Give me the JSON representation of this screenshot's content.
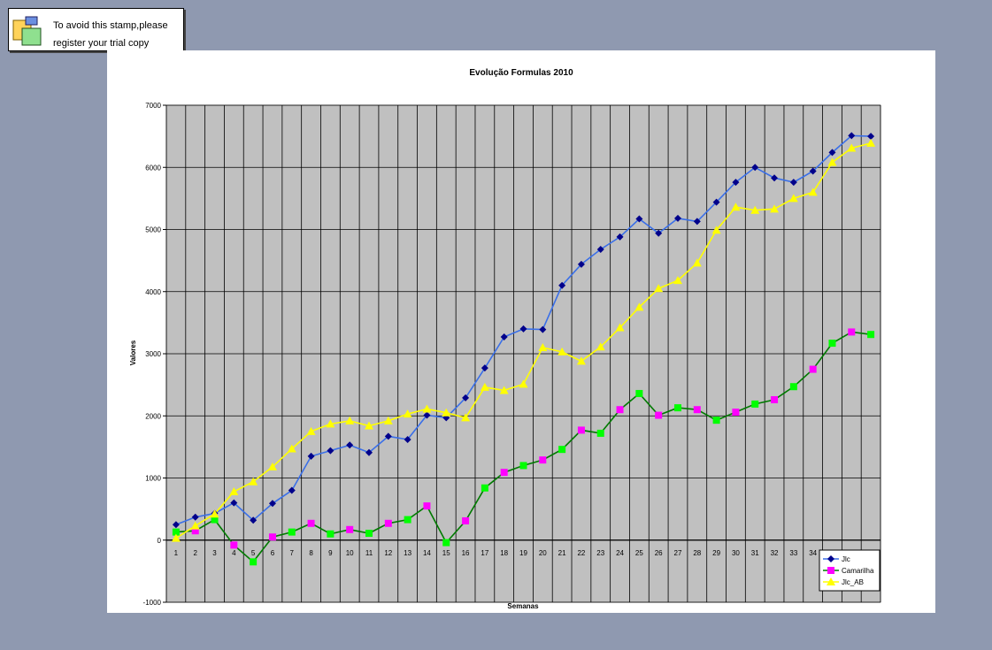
{
  "stamp": {
    "line1": "To avoid this stamp,please",
    "line2": "register your trial copy",
    "icon": "windows-icon"
  },
  "chart_data": {
    "type": "line",
    "title": "Evolução Formulas 2010",
    "xlabel": "Semanas",
    "ylabel": "Valores",
    "ylim": [
      -1000,
      7000
    ],
    "yticks": [
      -1000,
      0,
      1000,
      2000,
      3000,
      4000,
      5000,
      6000,
      7000
    ],
    "grid": true,
    "legend_position": "bottom-right",
    "categories": [
      "1",
      "2",
      "3",
      "4",
      "5",
      "6",
      "7",
      "8",
      "9",
      "10",
      "11",
      "12",
      "13",
      "14",
      "15",
      "16",
      "17",
      "18",
      "19",
      "20",
      "21",
      "22",
      "23",
      "24",
      "25",
      "26",
      "27",
      "28",
      "29",
      "30",
      "31",
      "32",
      "33",
      "34",
      "35",
      "36",
      "37"
    ],
    "series": [
      {
        "name": "Jlc",
        "line_color": "#3a6fe8",
        "marker_color": "#00008b",
        "marker": "diamond",
        "values": [
          250,
          370,
          430,
          600,
          320,
          590,
          800,
          1350,
          1440,
          1530,
          1410,
          1670,
          1620,
          2010,
          1970,
          2290,
          2770,
          3270,
          3400,
          3390,
          4100,
          4440,
          4680,
          4880,
          5170,
          4940,
          5180,
          5130,
          5440,
          5760,
          6000,
          5830,
          5760,
          5940,
          6240,
          6510,
          6500
        ]
      },
      {
        "name": "Camarilha",
        "line_color": "#007a00",
        "marker_colors": [
          "#00ff00",
          "#ff00ff"
        ],
        "marker": "square",
        "values": [
          130,
          150,
          330,
          -80,
          -350,
          50,
          130,
          270,
          100,
          170,
          110,
          270,
          330,
          550,
          -40,
          310,
          840,
          1090,
          1200,
          1290,
          1460,
          1770,
          1720,
          2100,
          2360,
          2010,
          2130,
          2100,
          1930,
          2060,
          2190,
          2260,
          2470,
          2750,
          3170,
          3350,
          3310
        ]
      },
      {
        "name": "Jlc_AB",
        "line_color": "#ffff00",
        "marker_color": "#ffff00",
        "marker": "triangle",
        "values": [
          30,
          230,
          420,
          780,
          940,
          1180,
          1470,
          1750,
          1870,
          1920,
          1840,
          1920,
          2030,
          2110,
          2050,
          1970,
          2460,
          2410,
          2510,
          3100,
          3030,
          2880,
          3110,
          3420,
          3750,
          4050,
          4180,
          4460,
          4990,
          5360,
          5310,
          5330,
          5500,
          5600,
          6080,
          6310,
          6390
        ]
      }
    ]
  }
}
